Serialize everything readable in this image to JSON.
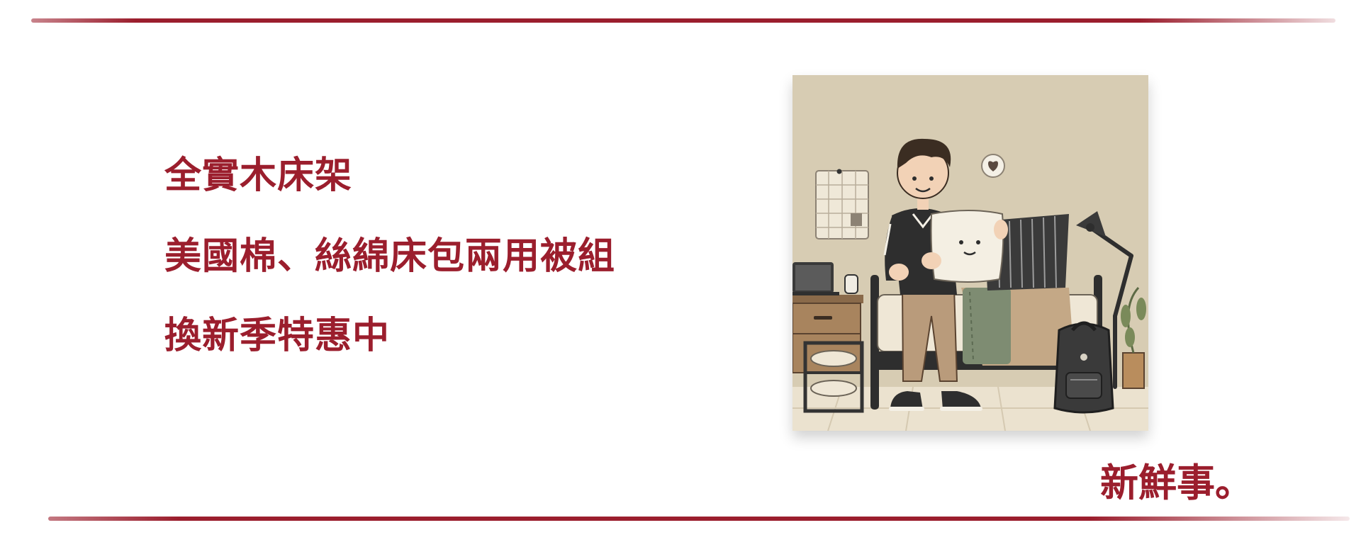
{
  "headlines": {
    "line1": "全實木床架",
    "line2": "美國棉、絲綿床包兩用被組",
    "line3": "換新季特惠中"
  },
  "brand": "新鮮事。",
  "colors": {
    "accent": "#9b1e2d",
    "wall": "#d7ccb3",
    "floor": "#ebe2cf"
  },
  "illustration": {
    "subject": "person-holding-pillow-in-bedroom",
    "icons": [
      "heart-icon"
    ]
  }
}
